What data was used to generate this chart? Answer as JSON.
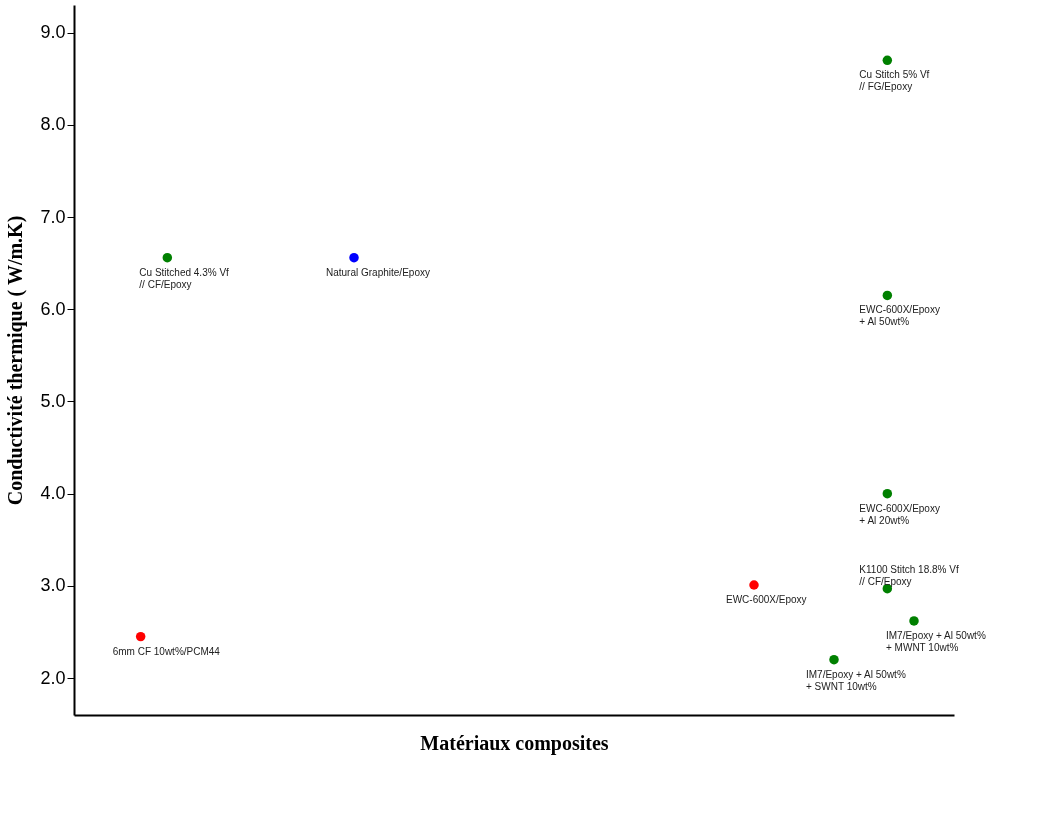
{
  "chart_data": {
    "type": "scatter",
    "xlabel": "Matériaux composites",
    "ylabel": "Conductivité thermique ( W/m.K)",
    "categories": [
      null,
      null,
      null,
      null,
      null,
      null,
      null,
      null,
      null,
      null,
      null,
      null,
      null,
      null,
      null,
      null,
      null,
      null,
      null,
      null,
      null,
      null,
      null,
      null,
      null,
      null,
      null,
      null,
      null,
      null,
      null,
      null,
      null
    ],
    "series": [
      {
        "color": "#ff0000",
        "values": [
          null,
          null,
          2.45,
          null,
          null,
          null,
          null,
          null,
          null,
          null,
          null,
          null,
          null,
          null,
          null,
          null,
          null,
          null,
          null,
          null,
          null,
          null,
          null,
          null,
          null,
          3.01,
          null,
          null,
          null,
          null,
          null,
          null,
          null
        ],
        "value_labels": [
          null,
          null,
          "6mm CF 10wt%/PCM44",
          null,
          null,
          null,
          null,
          null,
          null,
          null,
          null,
          null,
          null,
          null,
          null,
          null,
          null,
          null,
          null,
          null,
          null,
          null,
          null,
          null,
          null,
          "EWC-600X/Epoxy",
          null,
          null,
          null,
          null,
          null,
          null,
          null
        ]
      },
      {
        "color": "#0000ff",
        "values": [
          null,
          null,
          null,
          null,
          null,
          null,
          null,
          null,
          null,
          null,
          6.56,
          null,
          null,
          null,
          null,
          null,
          null,
          null,
          null,
          null,
          null,
          null,
          null,
          null,
          null,
          null,
          null,
          null,
          null,
          null,
          null,
          null,
          null
        ],
        "value_labels": [
          null,
          null,
          null,
          null,
          null,
          null,
          null,
          null,
          null,
          null,
          "Natural Graphite/Epoxy",
          null,
          null,
          null,
          null,
          null,
          null,
          null,
          null,
          null,
          null,
          null,
          null,
          null,
          null,
          null,
          null,
          null,
          null,
          null,
          null,
          null,
          null
        ]
      },
      {
        "color": "#008000",
        "values": [
          null,
          null,
          null,
          6.56,
          null,
          null,
          null,
          null,
          null,
          null,
          null,
          null,
          null,
          null,
          null,
          null,
          null,
          null,
          null,
          null,
          null,
          null,
          null,
          null,
          null,
          null,
          null,
          null,
          2.2,
          null,
          8.7,
          2.62,
          null
        ],
        "value_labels": [
          null,
          null,
          null,
          "Cu Stitched 4.3% Vf\n// CF/Epoxy",
          null,
          null,
          null,
          null,
          null,
          null,
          null,
          null,
          null,
          null,
          null,
          null,
          null,
          null,
          null,
          null,
          null,
          null,
          null,
          null,
          null,
          null,
          null,
          null,
          "IM7/Epoxy + Al 50wt%\n+ SWNT 10wt%",
          null,
          "Cu Stitch 5% Vf\n// FG/Epoxy",
          "IM7/Epoxy + Al 50wt%\n+ MWNT 10wt%",
          null
        ]
      },
      {
        "color": "#008000",
        "values": [
          null,
          null,
          null,
          null,
          null,
          null,
          null,
          null,
          null,
          null,
          null,
          null,
          null,
          null,
          null,
          null,
          null,
          null,
          null,
          null,
          null,
          null,
          null,
          null,
          null,
          null,
          null,
          null,
          null,
          null,
          6.15,
          null,
          null
        ],
        "value_labels": [
          null,
          null,
          null,
          null,
          null,
          null,
          null,
          null,
          null,
          null,
          null,
          null,
          null,
          null,
          null,
          null,
          null,
          null,
          null,
          null,
          null,
          null,
          null,
          null,
          null,
          null,
          null,
          null,
          null,
          null,
          "EWC-600X/Epoxy\n+ Al 50wt%",
          null,
          null
        ]
      },
      {
        "color": "#008000",
        "values": [
          null,
          null,
          null,
          null,
          null,
          null,
          null,
          null,
          null,
          null,
          null,
          null,
          null,
          null,
          null,
          null,
          null,
          null,
          null,
          null,
          null,
          null,
          null,
          null,
          null,
          null,
          null,
          null,
          null,
          null,
          4.0,
          null,
          null
        ],
        "value_labels": [
          null,
          null,
          null,
          null,
          null,
          null,
          null,
          null,
          null,
          null,
          null,
          null,
          null,
          null,
          null,
          null,
          null,
          null,
          null,
          null,
          null,
          null,
          null,
          null,
          null,
          null,
          null,
          null,
          null,
          null,
          "EWC-600X/Epoxy\n+ Al 20wt%",
          null,
          null
        ]
      },
      {
        "color": "#008000",
        "values": [
          null,
          null,
          null,
          null,
          null,
          null,
          null,
          null,
          null,
          null,
          null,
          null,
          null,
          null,
          null,
          null,
          null,
          null,
          null,
          null,
          null,
          null,
          null,
          null,
          null,
          null,
          null,
          null,
          null,
          null,
          2.97,
          null,
          null
        ],
        "value_labels": [
          null,
          null,
          null,
          null,
          null,
          null,
          null,
          null,
          null,
          null,
          null,
          null,
          null,
          null,
          null,
          null,
          null,
          null,
          null,
          null,
          null,
          null,
          null,
          null,
          null,
          null,
          null,
          null,
          null,
          null,
          "K1100 Stitch 18.8% Vf\n// CF/Epoxy",
          null,
          null
        ]
      }
    ],
    "ylim": [
      1.6,
      9.3
    ],
    "yticks": [
      {
        "value": 2,
        "label": "2.0"
      },
      {
        "value": 3,
        "label": "3.0"
      },
      {
        "value": 4,
        "label": "4.0"
      },
      {
        "value": 5,
        "label": "5.0"
      },
      {
        "value": 6,
        "label": "6.0"
      },
      {
        "value": 7,
        "label": "7.0"
      },
      {
        "value": 8,
        "label": "8.0"
      },
      {
        "value": 9,
        "label": "9.0"
      }
    ],
    "tick_labels": "y",
    "grid": false,
    "legend": false,
    "marker": "circle"
  }
}
